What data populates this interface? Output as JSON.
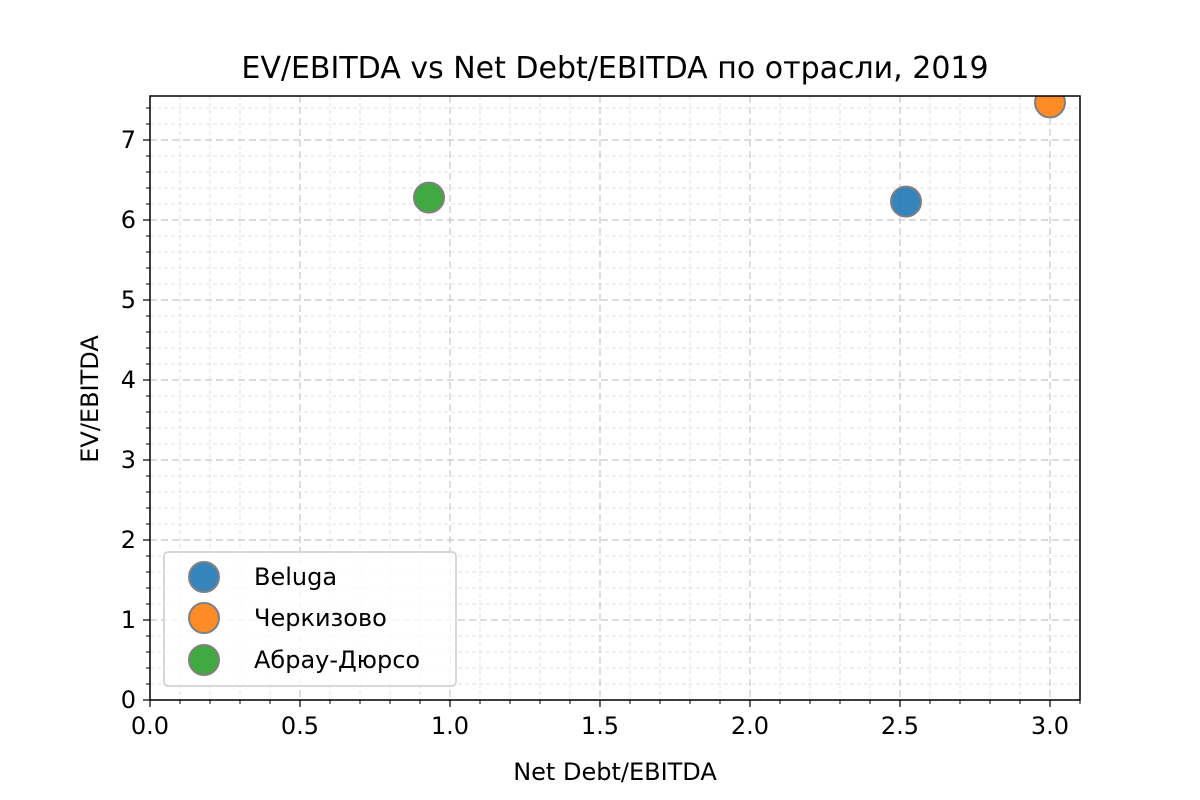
{
  "chart_data": {
    "type": "scatter",
    "title": "EV/EBITDA vs Net Debt/EBITDA по отрасли, 2019",
    "xlabel": "Net Debt/EBITDA",
    "ylabel": "EV/EBITDA",
    "xlim": [
      0,
      3.1
    ],
    "ylim": [
      0,
      7.55
    ],
    "xticks": [
      0.0,
      0.5,
      1.0,
      1.5,
      2.0,
      2.5,
      3.0
    ],
    "xtick_labels": [
      "0.0",
      "0.5",
      "1.0",
      "1.5",
      "2.0",
      "2.5",
      "3.0"
    ],
    "yticks": [
      0,
      1,
      2,
      3,
      4,
      5,
      6,
      7
    ],
    "ytick_labels": [
      "0",
      "1",
      "2",
      "3",
      "4",
      "5",
      "6",
      "7"
    ],
    "grid": true,
    "minor_grid": true,
    "legend_position": "bottom-left",
    "series": [
      {
        "name": "Beluga",
        "color": "#1f77b4",
        "points": [
          {
            "x": 2.52,
            "y": 6.23
          }
        ]
      },
      {
        "name": "Черкизово",
        "color": "#ff7f0e",
        "points": [
          {
            "x": 3.0,
            "y": 7.47
          }
        ]
      },
      {
        "name": "Абрау-Дюрсо",
        "color": "#2ca02c",
        "points": [
          {
            "x": 0.93,
            "y": 6.28
          }
        ]
      }
    ]
  }
}
